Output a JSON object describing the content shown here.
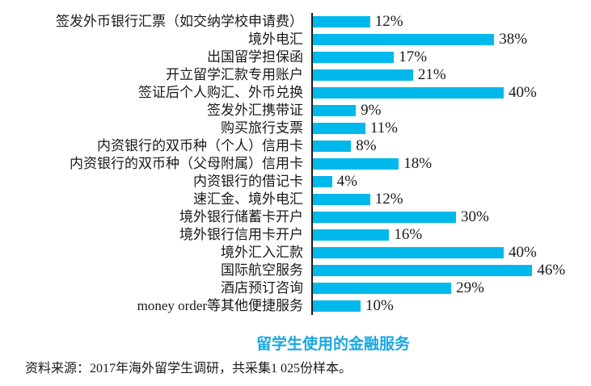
{
  "chart_data": {
    "type": "bar",
    "orientation": "horizontal",
    "title": "留学生使用的金融服务",
    "unit": "%",
    "categories": [
      "签发外币银行汇票（如交纳学校申请费）",
      "境外电汇",
      "出国留学担保函",
      "开立留学汇款专用账户",
      "签证后个人购汇、外币兑换",
      "签发外汇携带证",
      "购买旅行支票",
      "内资银行的双币种（个人）信用卡",
      "内资银行的双币种（父母附属）信用卡",
      "内资银行的借记卡",
      "速汇金、境外电汇",
      "境外银行储蓄卡开户",
      "境外银行信用卡开户",
      "境外汇入汇款",
      "国际航空服务",
      "酒店预订咨询",
      "money order等其他便捷服务"
    ],
    "values": [
      12,
      38,
      17,
      21,
      40,
      9,
      11,
      8,
      18,
      4,
      12,
      30,
      16,
      40,
      46,
      29,
      10
    ],
    "value_labels": [
      "12%",
      "38%",
      "17%",
      "21%",
      "40%",
      "9%",
      "11%",
      "8%",
      "18%",
      "4%",
      "12%",
      "30%",
      "16%",
      "40%",
      "46%",
      "29%",
      "10%"
    ],
    "xlim": [
      0,
      50
    ],
    "grid": false,
    "legend": false,
    "bar_color": "#00b9ec",
    "axis_color": "#1a1a1a",
    "title_color": "#1ba7e0"
  },
  "source_note": "资料来源：2017年海外留学生调研，共采集1 025份样本。"
}
